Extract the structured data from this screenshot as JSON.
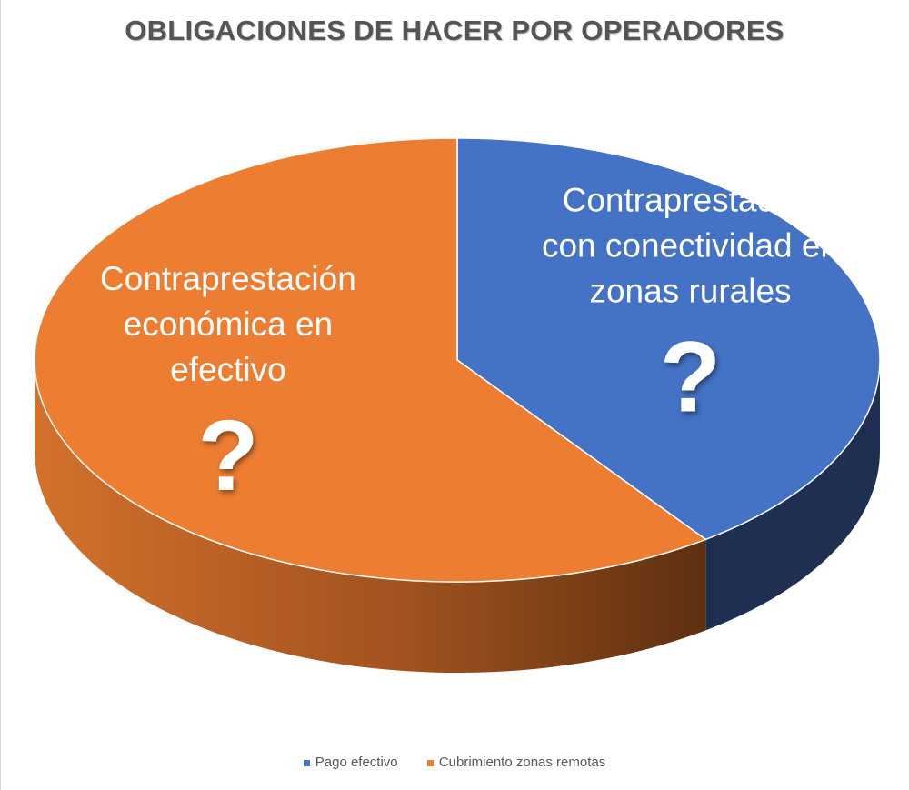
{
  "chart_data": {
    "type": "pie",
    "title": "OBLIGACIONES DE HACER POR OPERADORES",
    "slices": [
      {
        "name": "Pago efectivo",
        "value": 40,
        "color": "#4472C4",
        "side_color": "#1F2F52",
        "annotation_lines": [
          "Contraprestación",
          "con conectividad en",
          "zonas rurales"
        ],
        "mark": "?"
      },
      {
        "name": "Cubrimiento zonas remotas",
        "value": 60,
        "color": "#ED7D31",
        "side_color": "#A35620",
        "annotation_lines": [
          "Contraprestación",
          "económica en",
          "efectivo"
        ],
        "mark": "?"
      }
    ],
    "legend": [
      "Pago efectivo",
      "Cubrimiento zonas remotas"
    ],
    "legend_position": "bottom",
    "style": "3d"
  }
}
